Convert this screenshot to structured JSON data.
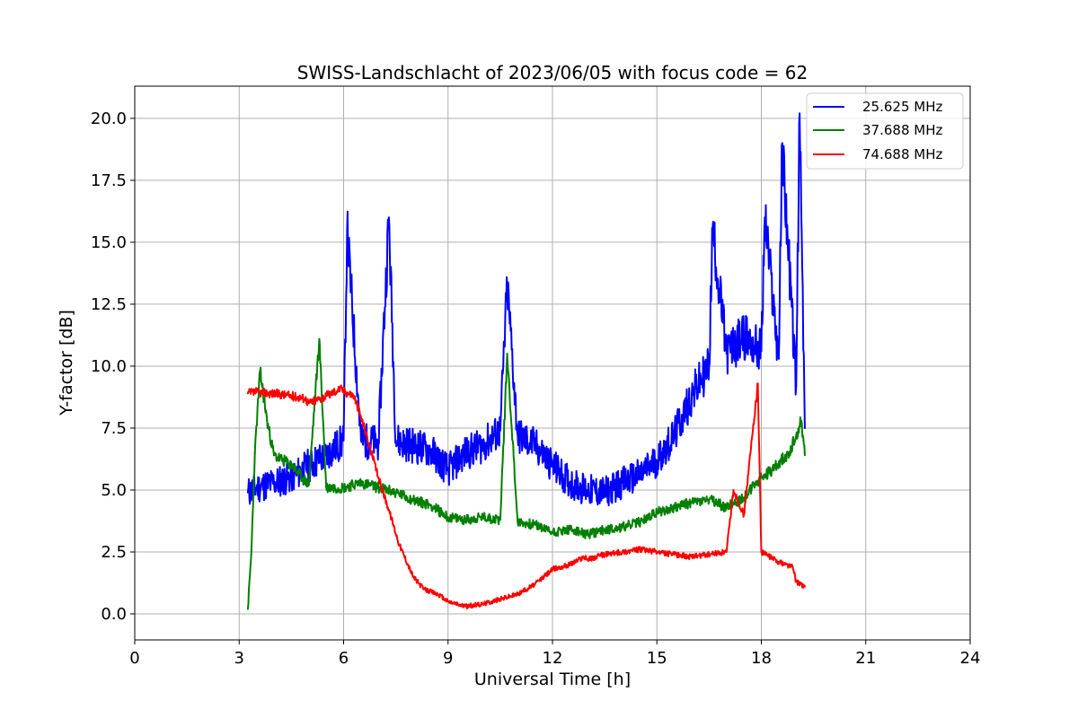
{
  "chart_data": {
    "type": "line",
    "title": "SWISS-Landschlacht of 2023/06/05 with focus code = 62",
    "xlabel": "Universal Time [h]",
    "ylabel": "Y-factor [dB]",
    "xlim": [
      0,
      24
    ],
    "ylim": [
      -1.05,
      21.3
    ],
    "xticks": [
      0,
      3,
      6,
      9,
      12,
      15,
      18,
      21,
      24
    ],
    "xtick_labels": [
      "0",
      "3",
      "6",
      "9",
      "12",
      "15",
      "18",
      "21",
      "24"
    ],
    "yticks": [
      0.0,
      2.5,
      5.0,
      7.5,
      10.0,
      12.5,
      15.0,
      17.5,
      20.0
    ],
    "ytick_labels": [
      "0.0",
      "2.5",
      "5.0",
      "7.5",
      "10.0",
      "12.5",
      "15.0",
      "17.5",
      "20.0"
    ],
    "grid": true,
    "legend_position": "top-right",
    "series": [
      {
        "name": "25.625 MHz",
        "color": "#0000ff",
        "x": [
          3.25,
          3.5,
          4.0,
          4.5,
          5.0,
          5.5,
          6.0,
          6.1,
          6.5,
          7.0,
          7.3,
          7.5,
          8.0,
          8.5,
          9.0,
          9.5,
          10.0,
          10.5,
          10.7,
          11.0,
          11.5,
          12.0,
          12.5,
          13.0,
          13.5,
          14.0,
          14.5,
          15.0,
          15.5,
          16.0,
          16.5,
          16.6,
          17.0,
          17.5,
          18.0,
          18.1,
          18.5,
          18.6,
          19.0,
          19.1,
          19.25
        ],
        "y": [
          4.9,
          5.1,
          5.3,
          5.5,
          6.0,
          6.4,
          7.0,
          15.5,
          7.0,
          6.9,
          16.0,
          7.0,
          6.8,
          6.6,
          5.8,
          6.5,
          6.8,
          7.4,
          13.3,
          7.2,
          6.8,
          6.0,
          5.3,
          5.0,
          4.9,
          5.3,
          5.6,
          6.2,
          7.2,
          8.8,
          10.0,
          15.6,
          10.5,
          11.2,
          10.6,
          16.0,
          10.3,
          19.0,
          9.2,
          20.2,
          7.5
        ]
      },
      {
        "name": "37.688 MHz",
        "color": "#008000",
        "x": [
          3.25,
          3.35,
          3.45,
          3.6,
          3.8,
          4.0,
          4.5,
          5.0,
          5.3,
          5.5,
          6.0,
          6.5,
          7.0,
          7.5,
          8.0,
          8.5,
          9.0,
          9.5,
          10.0,
          10.5,
          10.7,
          11.0,
          11.5,
          12.0,
          12.5,
          13.0,
          13.5,
          14.0,
          14.5,
          15.0,
          15.5,
          16.0,
          16.5,
          17.0,
          17.5,
          18.0,
          18.3,
          18.5,
          18.8,
          19.0,
          19.15,
          19.25
        ],
        "y": [
          0.2,
          2.5,
          6.5,
          9.8,
          7.8,
          6.4,
          6.0,
          5.2,
          11.1,
          5.1,
          5.1,
          5.3,
          5.1,
          4.9,
          4.6,
          4.4,
          3.9,
          3.8,
          3.9,
          3.8,
          10.5,
          3.7,
          3.6,
          3.3,
          3.4,
          3.2,
          3.4,
          3.5,
          3.7,
          4.1,
          4.3,
          4.5,
          4.6,
          4.3,
          4.7,
          5.5,
          5.8,
          6.1,
          6.5,
          7.2,
          7.8,
          6.4
        ]
      },
      {
        "name": "74.688 MHz",
        "color": "#ff0000",
        "x": [
          3.25,
          3.5,
          4.0,
          4.5,
          4.9,
          5.0,
          5.5,
          5.9,
          6.0,
          6.3,
          6.6,
          7.0,
          7.3,
          7.6,
          8.0,
          8.3,
          8.7,
          9.0,
          9.5,
          10.0,
          10.5,
          11.0,
          11.5,
          12.0,
          12.5,
          12.9,
          13.0,
          13.5,
          14.0,
          14.5,
          15.0,
          15.5,
          16.0,
          16.5,
          17.0,
          17.2,
          17.5,
          17.9,
          18.0,
          18.5,
          18.7,
          18.9,
          19.0,
          19.25
        ],
        "y": [
          8.9,
          8.95,
          8.9,
          8.8,
          8.7,
          8.5,
          8.8,
          9.1,
          9.0,
          8.8,
          7.5,
          5.5,
          4.2,
          2.8,
          1.5,
          1.0,
          0.8,
          0.5,
          0.3,
          0.4,
          0.6,
          0.8,
          1.2,
          1.8,
          2.0,
          2.3,
          2.2,
          2.4,
          2.5,
          2.6,
          2.5,
          2.4,
          2.3,
          2.4,
          2.5,
          5.0,
          4.0,
          9.3,
          2.5,
          2.1,
          2.0,
          1.9,
          1.3,
          1.1
        ]
      }
    ]
  }
}
